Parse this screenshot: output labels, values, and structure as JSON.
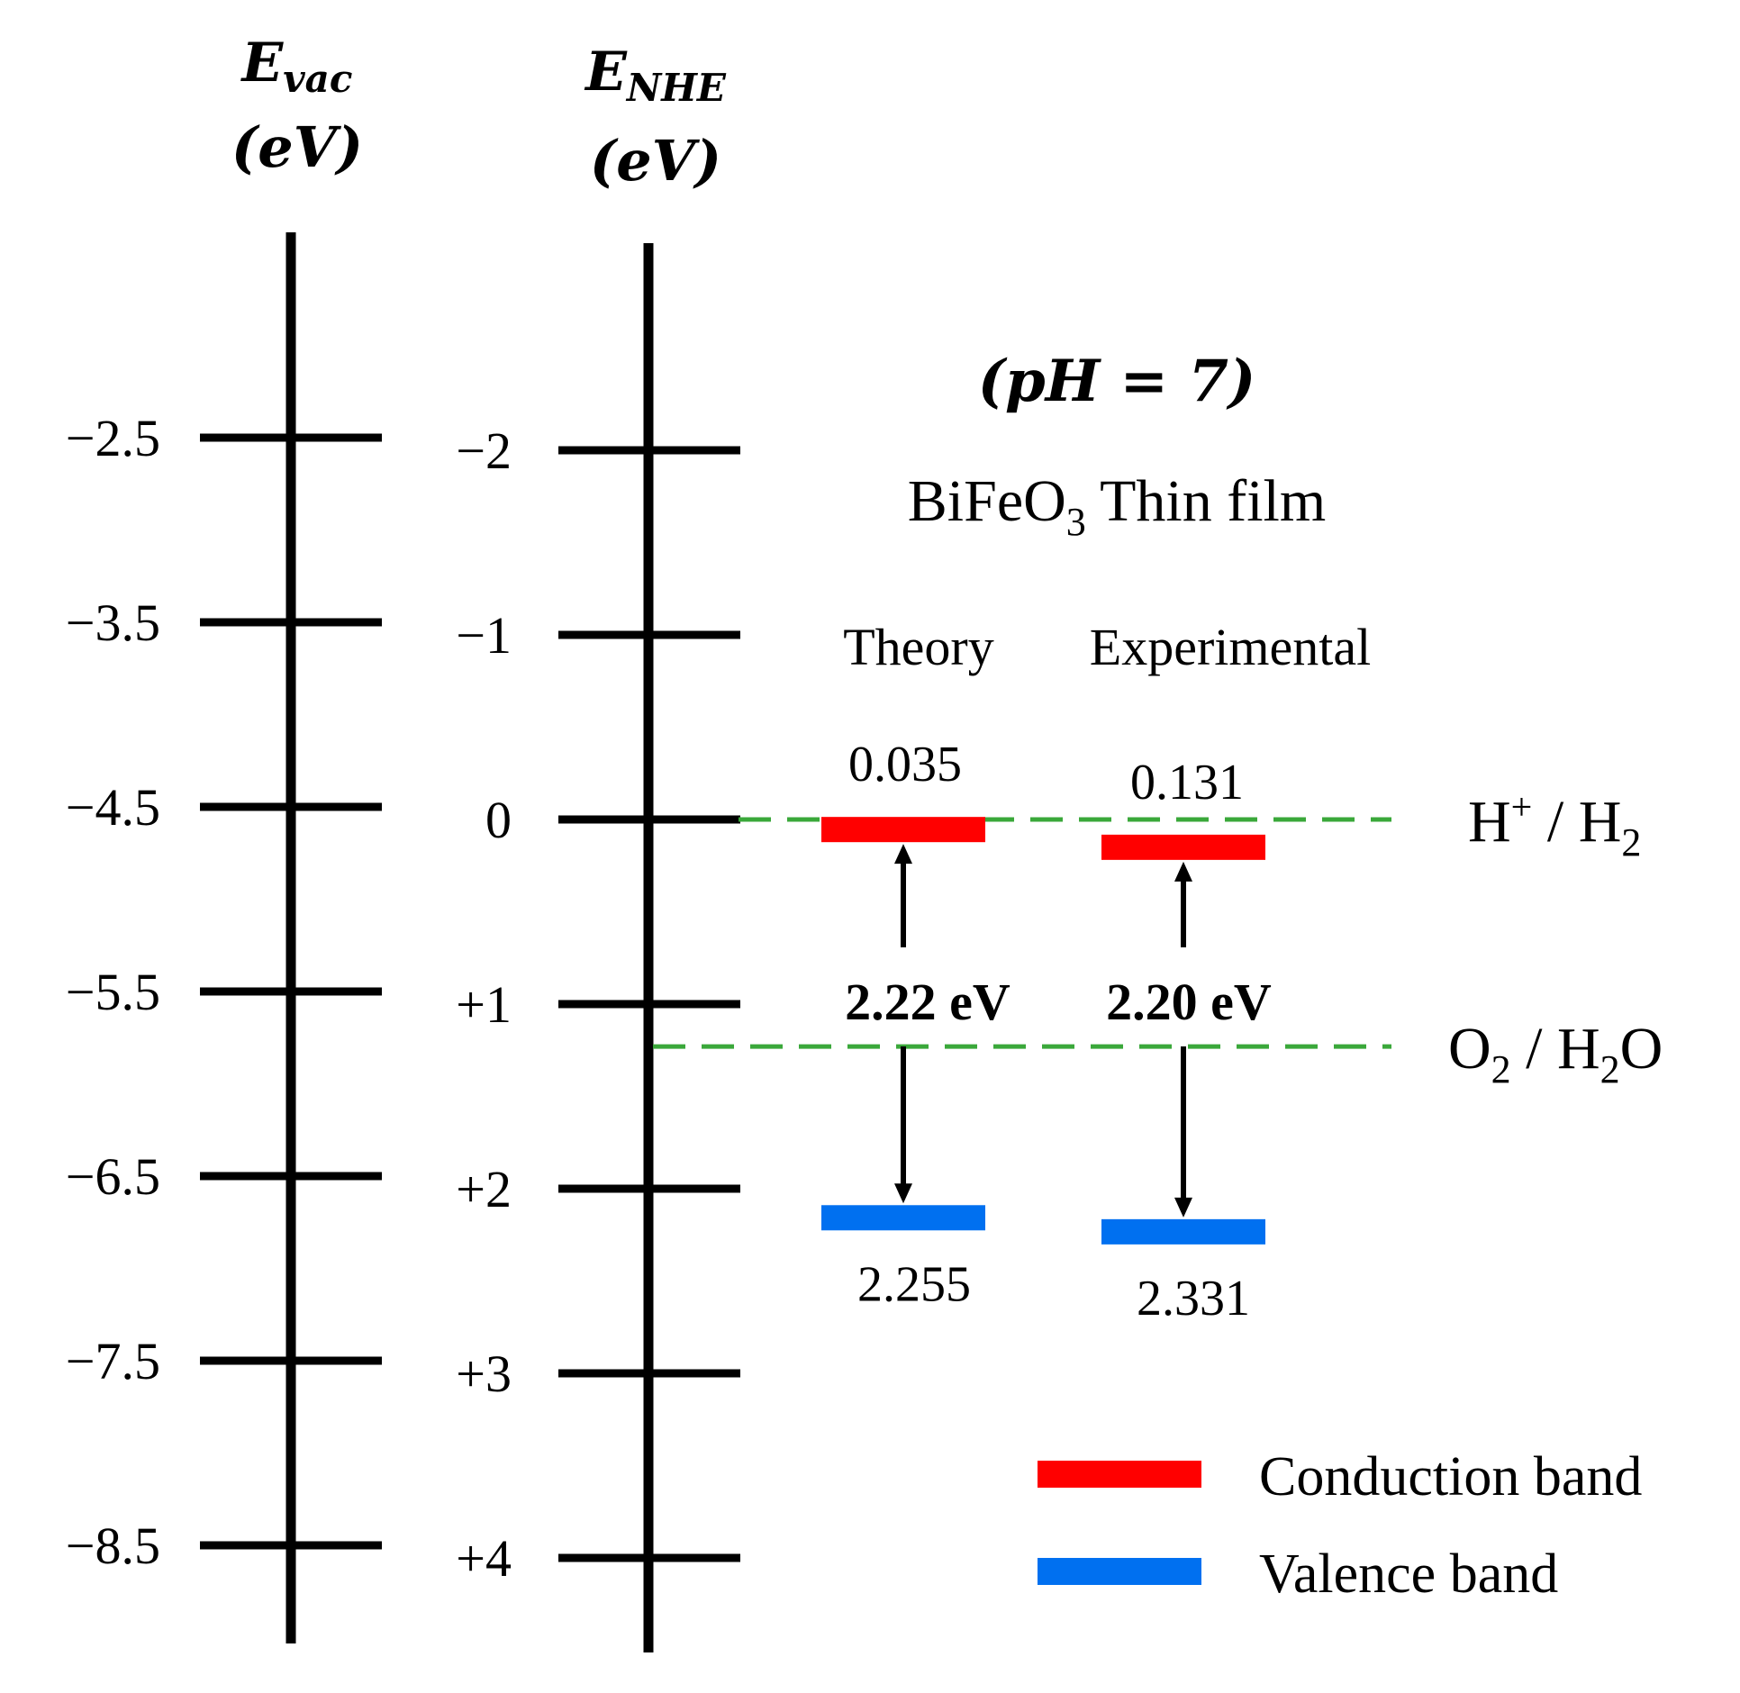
{
  "axes": {
    "vac": {
      "title_main": "E",
      "title_sub": "vac",
      "unit": "(eV)",
      "ticks": [
        "−2.5",
        "−3.5",
        "−4.5",
        "−5.5",
        "−6.5",
        "−7.5",
        "−8.5"
      ]
    },
    "nhe": {
      "title_main": "E",
      "title_sub": "NHE",
      "unit": "(eV)",
      "ticks": [
        "−2",
        "−1",
        "0",
        "+1",
        "+2",
        "+3",
        "+4"
      ]
    }
  },
  "condition": "(pH = 7)",
  "material": {
    "name_main": "BiFeO",
    "name_sub": "3",
    "name_rest": " Thin film"
  },
  "columns": [
    {
      "label": "Theory",
      "cb_value": "0.035",
      "vb_value": "2.255",
      "gap_label": "2.22 eV",
      "cb_nhe": 0.035,
      "vb_nhe": 2.255
    },
    {
      "label": "Experimental",
      "cb_value": "0.131",
      "vb_value": "2.331",
      "gap_label": "2.20 eV",
      "cb_nhe": 0.131,
      "vb_nhe": 2.331
    }
  ],
  "redox": [
    {
      "id": "h2",
      "nhe": 0.0,
      "label_parts": [
        [
          "H",
          ""
        ],
        [
          "+",
          "sup"
        ],
        [
          " / H",
          ""
        ],
        [
          "2",
          "sub"
        ]
      ]
    },
    {
      "id": "o2",
      "nhe": 1.23,
      "label_parts": [
        [
          "O",
          ""
        ],
        [
          "2",
          "sub"
        ],
        [
          " / H",
          ""
        ],
        [
          "2",
          "sub"
        ],
        [
          "O",
          ""
        ]
      ]
    }
  ],
  "legend": [
    {
      "label": "Conduction band",
      "color": "#ff0000"
    },
    {
      "label": "Valence band",
      "color": "#0070f0"
    }
  ],
  "colors": {
    "conduction": "#ff0000",
    "valence": "#0070f0",
    "redox_line": "#3aa83a",
    "axis": "#000000"
  }
}
